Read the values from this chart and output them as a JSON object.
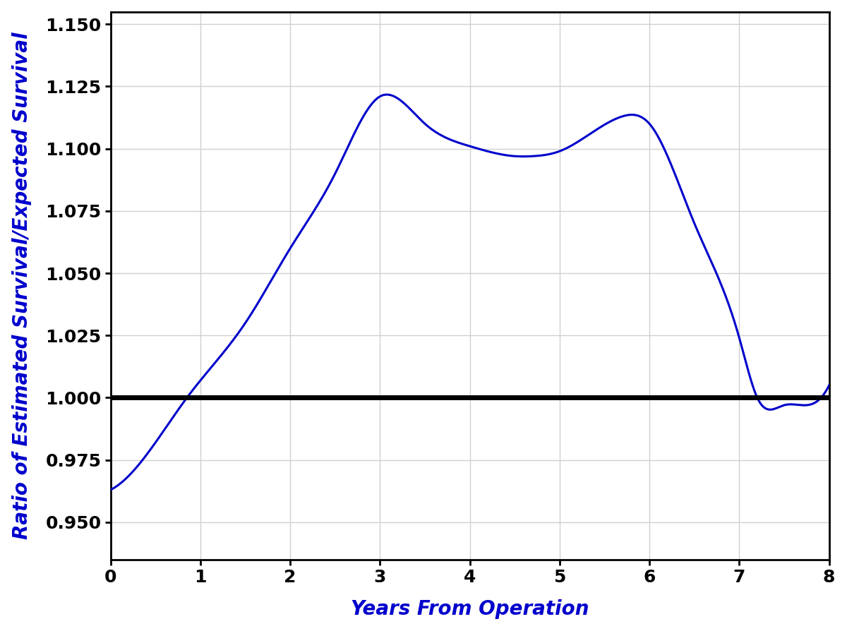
{
  "title": "",
  "xlabel": "Years From Operation",
  "ylabel": "Ratio of Estimated Survival/Expected Survival",
  "xlabel_color": "#0000CC",
  "ylabel_color": "#0000CC",
  "line_color": "#0000CC",
  "hline_color": "#000000",
  "hline_y": 1.0,
  "hline_lw": 5.0,
  "curve_lw": 2.2,
  "xlim": [
    0,
    8
  ],
  "ylim": [
    0.935,
    1.155
  ],
  "yticks": [
    0.95,
    0.975,
    1.0,
    1.025,
    1.05,
    1.075,
    1.1,
    1.125,
    1.15
  ],
  "xticks": [
    0,
    1,
    2,
    3,
    4,
    5,
    6,
    7,
    8
  ],
  "grid_color": "#d0d0d0",
  "bg_color": "#ffffff",
  "label_fontsize": 20,
  "tick_fontsize": 18,
  "key_points_x": [
    0.0,
    0.5,
    0.85,
    1.5,
    2.0,
    2.5,
    3.0,
    3.5,
    4.0,
    4.5,
    4.7,
    5.0,
    5.7,
    6.0,
    6.5,
    7.0,
    7.2,
    7.5,
    7.75,
    8.0
  ],
  "key_points_y": [
    0.963,
    0.982,
    1.0,
    1.03,
    1.06,
    1.09,
    1.121,
    1.11,
    1.101,
    1.097,
    1.097,
    1.099,
    1.113,
    1.11,
    1.07,
    1.024,
    1.0,
    0.997,
    0.997,
    1.005
  ]
}
